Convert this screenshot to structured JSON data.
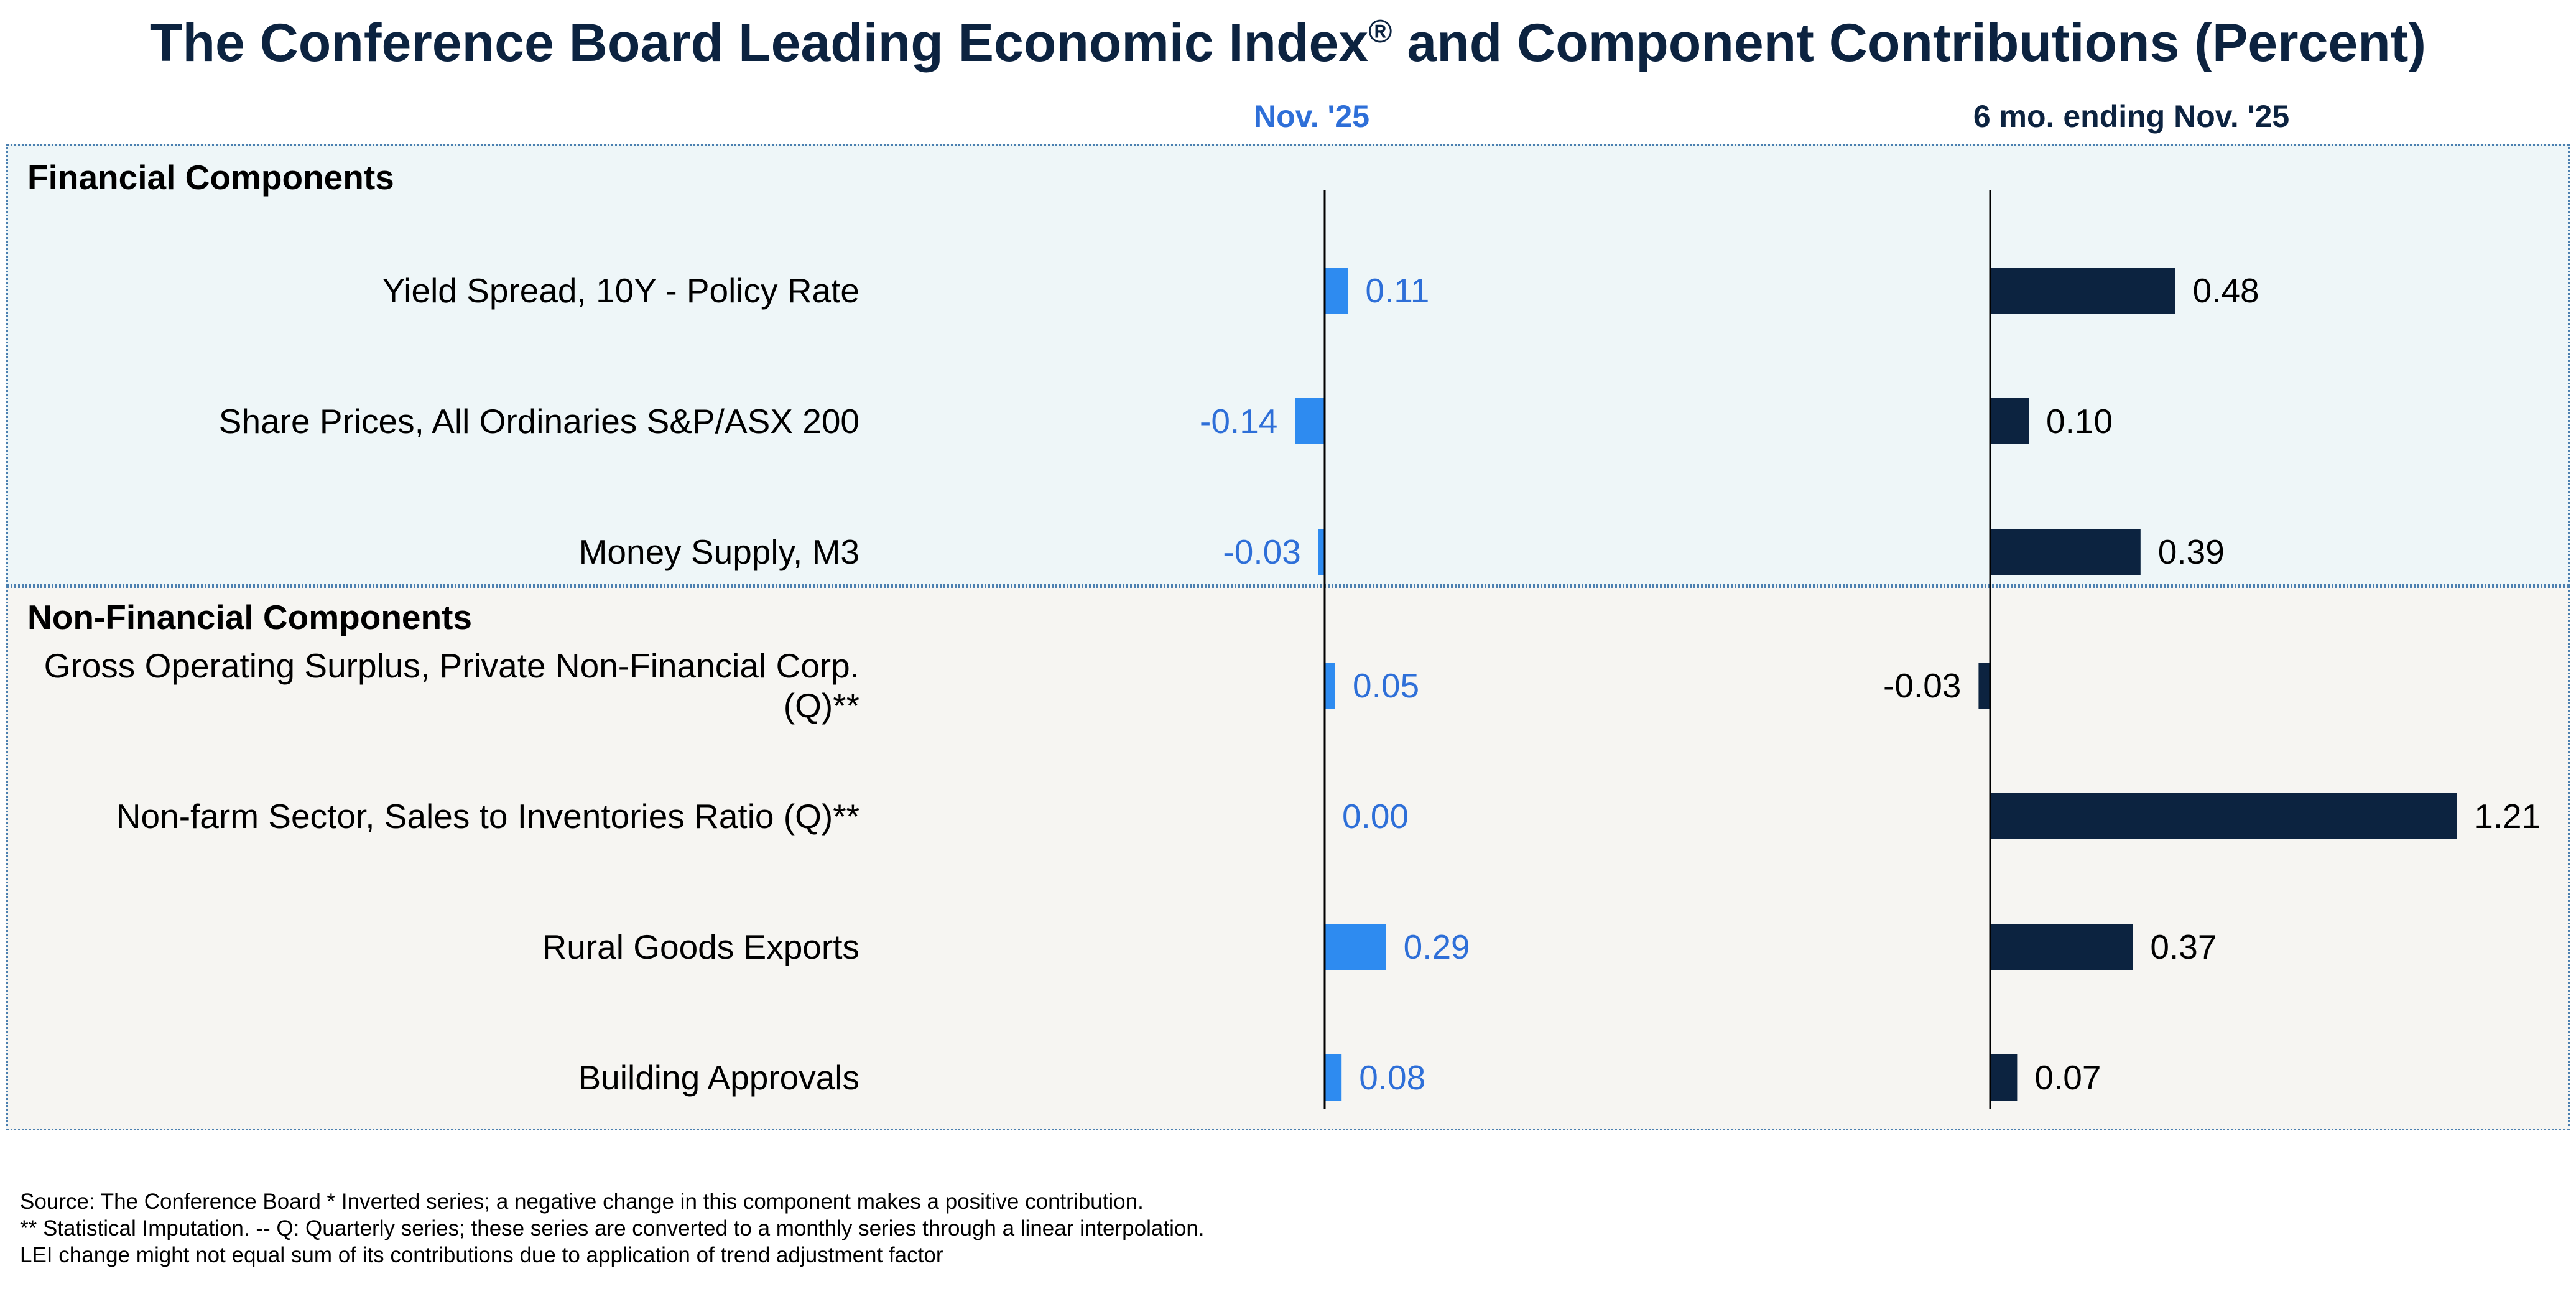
{
  "title": {
    "main": "The Conference Board Leading Economic Index",
    "registered": "®",
    "rest": " and Component Contributions (Percent)"
  },
  "colors": {
    "title": "#0c2340",
    "monthly_bar": "#2e8bf0",
    "monthly_text": "#2e6fd8",
    "six_month_bar": "#0c2340",
    "financial_bg": "#eef6f8",
    "nonfinancial_bg": "#f6f5f2"
  },
  "chart_data": {
    "type": "bar",
    "orientation": "horizontal",
    "sections": [
      {
        "name": "Financial Components",
        "categories": [
          [
            "Yield Spread, 10Y - Policy Rate"
          ],
          [
            "Share Prices, All Ordinaries S&P/ASX 200"
          ],
          [
            "Money Supply, M3"
          ]
        ]
      },
      {
        "name": "Non-Financial Components",
        "categories": [
          [
            "Gross Operating Surplus, Private Non-Financial Corp.",
            "(Q)**"
          ],
          [
            "Non-farm Sector, Sales to Inventories Ratio (Q)**"
          ],
          [
            "Rural Goods Exports"
          ],
          [
            "Building Approvals"
          ]
        ]
      }
    ],
    "series": [
      {
        "name": "Nov. '25",
        "values": [
          0.11,
          -0.14,
          -0.03,
          0.05,
          0.0,
          0.29,
          0.08
        ],
        "labels": [
          "0.11",
          "-0.14",
          "-0.03",
          "0.05",
          "0.00",
          "0.29",
          "0.08"
        ]
      },
      {
        "name": "6 mo. ending Nov. '25",
        "values": [
          0.48,
          0.1,
          0.39,
          -0.03,
          1.21,
          0.37,
          0.07
        ],
        "labels": [
          "0.48",
          "0.10",
          "0.39",
          "-0.03",
          "1.21",
          "0.37",
          "0.07"
        ]
      }
    ],
    "grid": false,
    "legend": "none"
  },
  "footnotes": [
    "Source: The Conference Board *  Inverted series; a negative change in this component makes a positive contribution.",
    "**  Statistical Imputation. -- Q: Quarterly series; these series are converted to a monthly series through a linear interpolation.",
    "LEI change might not equal sum of its contributions due to application of trend adjustment factor"
  ]
}
